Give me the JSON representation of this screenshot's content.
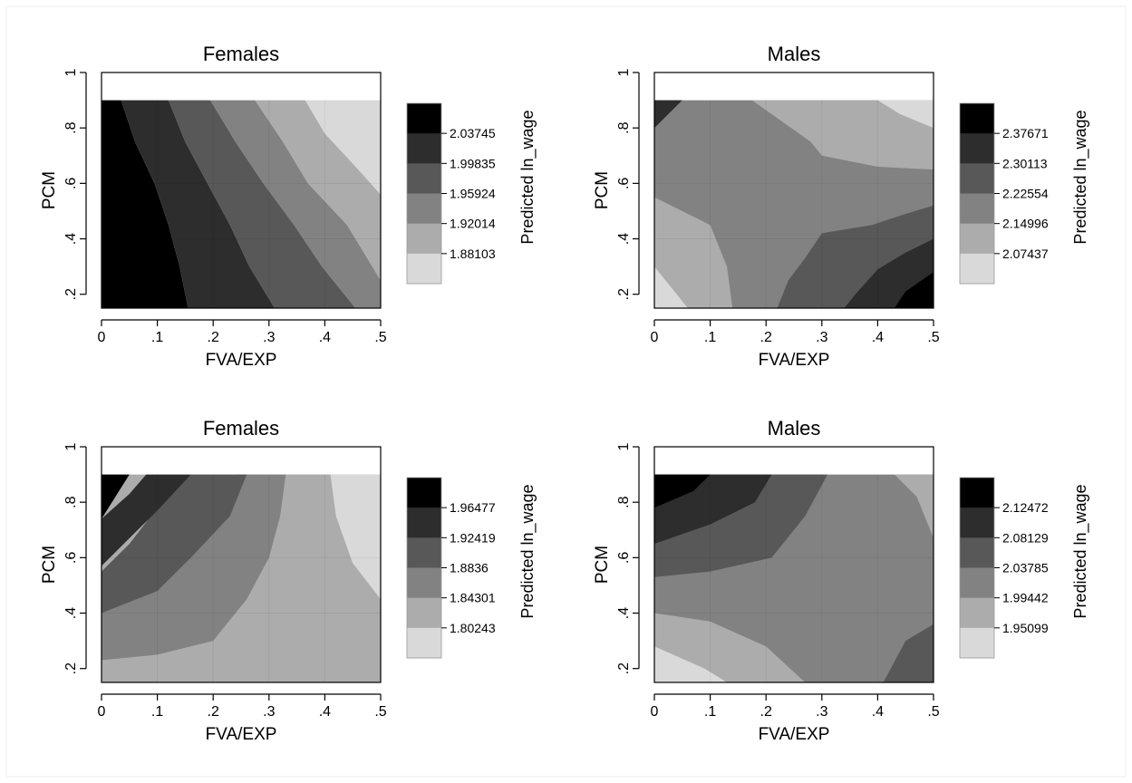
{
  "chart_data": [
    {
      "type": "heatmap",
      "title": "Females",
      "xlabel": "FVA/EXP",
      "ylabel": "PCM",
      "colorbar_label": "Predicted ln_wage",
      "x_ticks": [
        "0",
        ".1",
        ".2",
        ".3",
        ".4",
        ".5"
      ],
      "y_ticks": [
        ".2",
        ".4",
        ".6",
        ".8",
        "1"
      ],
      "xlim": [
        0,
        0.5
      ],
      "ylim": [
        0.15,
        1.0
      ],
      "data_extent": {
        "x": [
          0,
          0.5
        ],
        "y": [
          0.15,
          0.9
        ]
      },
      "levels": [
        "2.03745",
        "1.99835",
        "1.95924",
        "1.92014",
        "1.88103"
      ],
      "level_colors": [
        "#000000",
        "#2d2d2d",
        "#585858",
        "#828282",
        "#acacac",
        "#d9d9d9"
      ],
      "regions": [
        [
          [
            0,
            0.15
          ],
          [
            0.155,
            0.15
          ],
          [
            0.14,
            0.3
          ],
          [
            0.12,
            0.45
          ],
          [
            0.095,
            0.6
          ],
          [
            0.06,
            0.75
          ],
          [
            0.035,
            0.9
          ],
          [
            0,
            0.9
          ]
        ],
        [
          [
            0.155,
            0.15
          ],
          [
            0.31,
            0.15
          ],
          [
            0.265,
            0.3
          ],
          [
            0.23,
            0.45
          ],
          [
            0.19,
            0.6
          ],
          [
            0.15,
            0.75
          ],
          [
            0.12,
            0.9
          ],
          [
            0.035,
            0.9
          ],
          [
            0.06,
            0.75
          ],
          [
            0.095,
            0.6
          ],
          [
            0.12,
            0.45
          ],
          [
            0.14,
            0.3
          ]
        ],
        [
          [
            0.31,
            0.15
          ],
          [
            0.455,
            0.15
          ],
          [
            0.395,
            0.3
          ],
          [
            0.345,
            0.45
          ],
          [
            0.29,
            0.6
          ],
          [
            0.24,
            0.75
          ],
          [
            0.195,
            0.9
          ],
          [
            0.12,
            0.9
          ],
          [
            0.15,
            0.75
          ],
          [
            0.19,
            0.6
          ],
          [
            0.23,
            0.45
          ],
          [
            0.265,
            0.3
          ]
        ],
        [
          [
            0.455,
            0.15
          ],
          [
            0.5,
            0.15
          ],
          [
            0.5,
            0.25
          ],
          [
            0.44,
            0.45
          ],
          [
            0.37,
            0.6
          ],
          [
            0.325,
            0.75
          ],
          [
            0.275,
            0.9
          ],
          [
            0.195,
            0.9
          ],
          [
            0.24,
            0.75
          ],
          [
            0.29,
            0.6
          ],
          [
            0.345,
            0.45
          ],
          [
            0.395,
            0.3
          ]
        ],
        [
          [
            0.5,
            0.25
          ],
          [
            0.5,
            0.56
          ],
          [
            0.46,
            0.65
          ],
          [
            0.4,
            0.78
          ],
          [
            0.365,
            0.9
          ],
          [
            0.275,
            0.9
          ],
          [
            0.325,
            0.75
          ],
          [
            0.37,
            0.6
          ],
          [
            0.44,
            0.45
          ]
        ],
        [
          [
            0.5,
            0.56
          ],
          [
            0.5,
            0.9
          ],
          [
            0.365,
            0.9
          ],
          [
            0.4,
            0.78
          ],
          [
            0.46,
            0.65
          ]
        ]
      ]
    },
    {
      "type": "heatmap",
      "title": "Males",
      "xlabel": "FVA/EXP",
      "ylabel": "PCM",
      "colorbar_label": "Predicted ln_wage",
      "x_ticks": [
        "0",
        ".1",
        ".2",
        ".3",
        ".4",
        ".5"
      ],
      "y_ticks": [
        ".2",
        ".4",
        ".6",
        ".8",
        "1"
      ],
      "xlim": [
        0,
        0.5
      ],
      "ylim": [
        0.15,
        1.0
      ],
      "data_extent": {
        "x": [
          0,
          0.5
        ],
        "y": [
          0.15,
          0.9
        ]
      },
      "levels": [
        "2.37671",
        "2.30113",
        "2.22554",
        "2.14996",
        "2.07437"
      ],
      "level_colors": [
        "#000000",
        "#2d2d2d",
        "#585858",
        "#828282",
        "#acacac",
        "#d9d9d9"
      ],
      "regions": [
        [
          [
            0,
            0.15
          ],
          [
            0.5,
            0.15
          ],
          [
            0.5,
            0.9
          ],
          [
            0,
            0.9
          ]
        ],
        [
          [
            0,
            0.15
          ],
          [
            0.14,
            0.15
          ],
          [
            0.13,
            0.3
          ],
          [
            0.1,
            0.45
          ],
          [
            0,
            0.55
          ]
        ],
        [
          [
            0.175,
            0.9
          ],
          [
            0.28,
            0.75
          ],
          [
            0.3,
            0.7
          ],
          [
            0.4,
            0.66
          ],
          [
            0.5,
            0.65
          ],
          [
            0.5,
            0.9
          ]
        ],
        [
          [
            0.22,
            0.15
          ],
          [
            0.5,
            0.15
          ],
          [
            0.5,
            0.52
          ],
          [
            0.45,
            0.49
          ],
          [
            0.39,
            0.45
          ],
          [
            0.3,
            0.42
          ],
          [
            0.27,
            0.33
          ],
          [
            0.24,
            0.25
          ]
        ],
        [
          [
            0.34,
            0.15
          ],
          [
            0.5,
            0.15
          ],
          [
            0.5,
            0.4
          ],
          [
            0.45,
            0.35
          ],
          [
            0.4,
            0.29
          ],
          [
            0.36,
            0.2
          ]
        ],
        [
          [
            0,
            0.15
          ],
          [
            0.06,
            0.15
          ],
          [
            0,
            0.3
          ]
        ],
        [
          [
            0.4,
            0.9
          ],
          [
            0.44,
            0.85
          ],
          [
            0.5,
            0.8
          ],
          [
            0.5,
            0.9
          ]
        ],
        [
          [
            0.43,
            0.15
          ],
          [
            0.5,
            0.15
          ],
          [
            0.5,
            0.28
          ],
          [
            0.45,
            0.21
          ]
        ],
        [
          [
            0,
            0.8
          ],
          [
            0.05,
            0.9
          ],
          [
            0,
            0.9
          ]
        ]
      ]
    },
    {
      "type": "heatmap",
      "title": "Females",
      "xlabel": "FVA/EXP",
      "ylabel": "PCM",
      "colorbar_label": "Predicted ln_wage",
      "x_ticks": [
        "0",
        ".1",
        ".2",
        ".3",
        ".4",
        ".5"
      ],
      "y_ticks": [
        ".2",
        ".4",
        ".6",
        ".8",
        "1"
      ],
      "xlim": [
        0,
        0.5
      ],
      "ylim": [
        0.15,
        1.0
      ],
      "data_extent": {
        "x": [
          0,
          0.5
        ],
        "y": [
          0.15,
          0.9
        ]
      },
      "levels": [
        "1.96477",
        "1.92419",
        "1.8836",
        "1.84301",
        "1.80243"
      ],
      "level_colors": [
        "#000000",
        "#2d2d2d",
        "#585858",
        "#828282",
        "#acacac",
        "#d9d9d9"
      ],
      "regions": [
        [
          [
            0,
            0.15
          ],
          [
            0.5,
            0.15
          ],
          [
            0.5,
            0.9
          ],
          [
            0,
            0.9
          ]
        ],
        [
          [
            0,
            0.15
          ],
          [
            0.5,
            0.15
          ],
          [
            0.5,
            0.45
          ],
          [
            0.45,
            0.58
          ],
          [
            0.42,
            0.75
          ],
          [
            0.41,
            0.9
          ],
          [
            0.33,
            0.9
          ],
          [
            0.32,
            0.75
          ],
          [
            0.3,
            0.6
          ],
          [
            0.26,
            0.45
          ],
          [
            0.2,
            0.3
          ],
          [
            0.1,
            0.25
          ],
          [
            0,
            0.23
          ]
        ],
        [
          [
            0,
            0.23
          ],
          [
            0.1,
            0.25
          ],
          [
            0.2,
            0.3
          ],
          [
            0.26,
            0.45
          ],
          [
            0.3,
            0.6
          ],
          [
            0.32,
            0.75
          ],
          [
            0.33,
            0.9
          ],
          [
            0.24,
            0.9
          ],
          [
            0.17,
            0.75
          ],
          [
            0.1,
            0.6
          ],
          [
            0,
            0.4
          ]
        ],
        [
          [
            0,
            0.4
          ],
          [
            0.1,
            0.48
          ],
          [
            0.16,
            0.6
          ],
          [
            0.23,
            0.75
          ],
          [
            0.26,
            0.9
          ],
          [
            0.16,
            0.9
          ],
          [
            0.1,
            0.78
          ],
          [
            0.05,
            0.65
          ],
          [
            0,
            0.55
          ]
        ],
        [
          [
            0,
            0.57
          ],
          [
            0.05,
            0.67
          ],
          [
            0.1,
            0.77
          ],
          [
            0.16,
            0.9
          ],
          [
            0.08,
            0.9
          ],
          [
            0.05,
            0.83
          ],
          [
            0,
            0.74
          ]
        ],
        [
          [
            0,
            0.74
          ],
          [
            0.05,
            0.9
          ],
          [
            0,
            0.9
          ]
        ],
        [
          [
            0.41,
            0.9
          ],
          [
            0.42,
            0.75
          ],
          [
            0.45,
            0.58
          ],
          [
            0.5,
            0.45
          ],
          [
            0.5,
            0.9
          ]
        ]
      ]
    },
    {
      "type": "heatmap",
      "title": "Males",
      "xlabel": "FVA/EXP",
      "ylabel": "PCM",
      "colorbar_label": "Predicted ln_wage",
      "x_ticks": [
        "0",
        ".1",
        ".2",
        ".3",
        ".4",
        ".5"
      ],
      "y_ticks": [
        ".2",
        ".4",
        ".6",
        ".8",
        "1"
      ],
      "xlim": [
        0,
        0.5
      ],
      "ylim": [
        0.15,
        1.0
      ],
      "data_extent": {
        "x": [
          0,
          0.5
        ],
        "y": [
          0.15,
          0.9
        ]
      },
      "levels": [
        "2.12472",
        "2.08129",
        "2.03785",
        "1.99442",
        "1.95099"
      ],
      "level_colors": [
        "#000000",
        "#2d2d2d",
        "#585858",
        "#828282",
        "#acacac",
        "#d9d9d9"
      ],
      "regions": [
        [
          [
            0,
            0.15
          ],
          [
            0.5,
            0.15
          ],
          [
            0.5,
            0.9
          ],
          [
            0,
            0.9
          ]
        ],
        [
          [
            0,
            0.15
          ],
          [
            0.27,
            0.15
          ],
          [
            0.2,
            0.28
          ],
          [
            0.1,
            0.37
          ],
          [
            0,
            0.4
          ]
        ],
        [
          [
            0,
            0.9
          ],
          [
            0,
            0.53
          ],
          [
            0.1,
            0.55
          ],
          [
            0.21,
            0.6
          ],
          [
            0.27,
            0.75
          ],
          [
            0.31,
            0.9
          ]
        ],
        [
          [
            0,
            0.65
          ],
          [
            0.1,
            0.72
          ],
          [
            0.18,
            0.8
          ],
          [
            0.21,
            0.9
          ],
          [
            0,
            0.9
          ]
        ],
        [
          [
            0,
            0.78
          ],
          [
            0.07,
            0.84
          ],
          [
            0.1,
            0.9
          ],
          [
            0,
            0.9
          ]
        ],
        [
          [
            0,
            0.15
          ],
          [
            0.13,
            0.15
          ],
          [
            0.09,
            0.2
          ],
          [
            0,
            0.28
          ]
        ],
        [
          [
            0.41,
            0.15
          ],
          [
            0.5,
            0.15
          ],
          [
            0.5,
            0.36
          ],
          [
            0.45,
            0.3
          ]
        ],
        [
          [
            0.43,
            0.9
          ],
          [
            0.47,
            0.82
          ],
          [
            0.5,
            0.67
          ],
          [
            0.5,
            0.9
          ]
        ]
      ]
    }
  ]
}
